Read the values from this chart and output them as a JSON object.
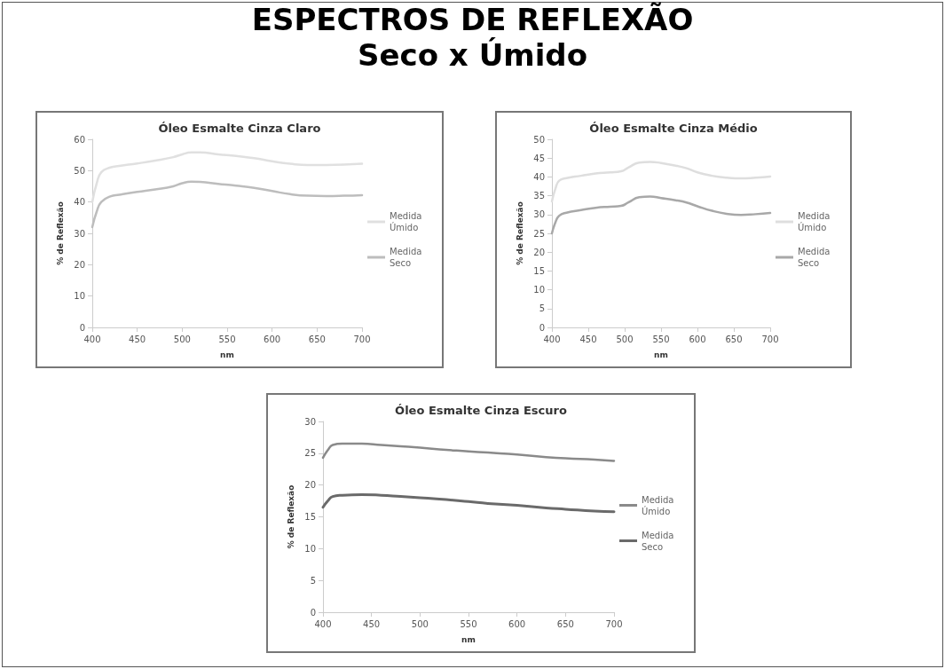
{
  "chart_data": [
    {
      "type": "line",
      "title": "Óleo Esmalte Cinza Claro",
      "xlabel": "nm",
      "ylabel": "% de Reflexão",
      "annotations": [
        "ESPECTROS DE REFLEXÃO",
        "Seco x Úmido"
      ],
      "xlim": [
        400,
        700
      ],
      "xticks": [
        400,
        450,
        500,
        550,
        600,
        650,
        700
      ],
      "ylim": [
        0,
        60
      ],
      "yticks": [
        0,
        10,
        20,
        30,
        40,
        50,
        60
      ],
      "grid": false,
      "legend": "right",
      "marker": "none",
      "line_style": "solid",
      "x": [
        400,
        405,
        410,
        420,
        430,
        450,
        470,
        490,
        500,
        510,
        520,
        540,
        560,
        580,
        600,
        620,
        640,
        660,
        680,
        700
      ],
      "series": [
        {
          "name": "Medida Úmido",
          "color": "#e0e0e0",
          "values": [
            40,
            46,
            49.5,
            51,
            51.5,
            52.3,
            53.2,
            54.3,
            55.2,
            55.8,
            55.8,
            55.2,
            54.7,
            54,
            53,
            52.2,
            51.8,
            51.8,
            51.9,
            52.2
          ]
        },
        {
          "name": "Medida Seco",
          "color": "#bdbdbd",
          "values": [
            32,
            37,
            40,
            41.8,
            42.3,
            43.2,
            44,
            45,
            46,
            46.5,
            46.4,
            45.8,
            45.2,
            44.5,
            43.5,
            42.5,
            42,
            41.9,
            42,
            42.2
          ]
        }
      ]
    },
    {
      "type": "line",
      "title": "Óleo Esmalte Cinza Médio",
      "xlabel": "nm",
      "ylabel": "% de Reflexão",
      "xlim": [
        400,
        700
      ],
      "xticks": [
        400,
        450,
        500,
        550,
        600,
        650,
        700
      ],
      "ylim": [
        0,
        50
      ],
      "yticks": [
        0,
        5,
        10,
        15,
        20,
        25,
        30,
        35,
        40,
        45,
        50
      ],
      "grid": false,
      "legend": "right",
      "marker": "none",
      "line_style": "solid",
      "x": [
        400,
        405,
        410,
        420,
        440,
        460,
        480,
        495,
        505,
        520,
        535,
        550,
        570,
        585,
        600,
        620,
        640,
        660,
        680,
        700
      ],
      "series": [
        {
          "name": "Medida Úmido",
          "color": "#dedede",
          "values": [
            33.5,
            37,
            39,
            39.7,
            40.3,
            40.9,
            41.2,
            41.5,
            42.5,
            43.8,
            44,
            43.7,
            43,
            42.3,
            41.2,
            40.3,
            39.8,
            39.6,
            39.8,
            40.1
          ]
        },
        {
          "name": "Medida Seco",
          "color": "#a8a8a8",
          "values": [
            25,
            28,
            29.7,
            30.5,
            31.2,
            31.8,
            32.1,
            32.3,
            33.2,
            34.6,
            34.8,
            34.4,
            33.8,
            33.2,
            32.2,
            31,
            30.2,
            29.9,
            30.1,
            30.4
          ]
        }
      ]
    },
    {
      "type": "line",
      "title": "Óleo Esmalte Cinza Escuro",
      "xlabel": "nm",
      "ylabel": "% de Reflexão",
      "xlim": [
        400,
        700
      ],
      "xticks": [
        400,
        450,
        500,
        550,
        600,
        650,
        700
      ],
      "ylim": [
        0,
        30
      ],
      "yticks": [
        0,
        5,
        10,
        15,
        20,
        25,
        30
      ],
      "grid": false,
      "legend": "right",
      "marker": "none",
      "line_style": "solid",
      "x": [
        400,
        405,
        410,
        420,
        440,
        460,
        480,
        500,
        520,
        550,
        570,
        600,
        630,
        650,
        680,
        700
      ],
      "series": [
        {
          "name": "Medida Úmido",
          "color": "#8a8a8a",
          "values": [
            24.3,
            25.5,
            26.3,
            26.5,
            26.5,
            26.3,
            26.1,
            25.9,
            25.6,
            25.3,
            25.1,
            24.8,
            24.4,
            24.2,
            24,
            23.8
          ]
        },
        {
          "name": "Medida Seco",
          "color": "#6a6a6a",
          "values": [
            16.5,
            17.5,
            18.2,
            18.4,
            18.5,
            18.4,
            18.2,
            18,
            17.8,
            17.4,
            17.1,
            16.8,
            16.4,
            16.2,
            15.9,
            15.8
          ]
        }
      ]
    }
  ]
}
